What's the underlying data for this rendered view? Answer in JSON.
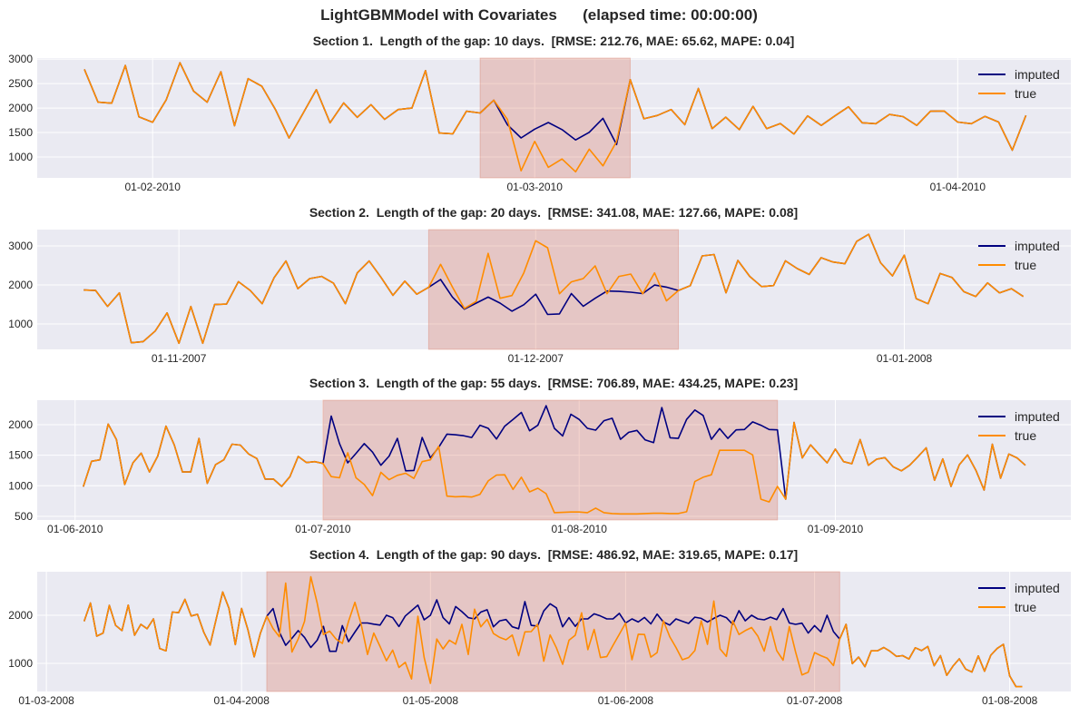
{
  "title": "LightGBMModel with Covariates      (elapsed time: 00:00:00)",
  "colors": {
    "background": "#EAEAF2",
    "grid": "#FFFFFF",
    "imputed": "#000080",
    "true": "#FF8C00",
    "gap_shade": "#D9735C"
  },
  "chart_data": [
    {
      "type": "line",
      "title": "Section 1.  Length of the gap: 10 days.  [RMSE: 212.76, MAE: 65.62, MAPE: 0.04]",
      "x_first": "2010-01-27",
      "x_last": "2010-04-06",
      "x_frequency": "daily",
      "xlim": [
        "2010-01-23T13:00",
        "2010-04-09T07:00"
      ],
      "ylim": [
        575,
        3020
      ],
      "yticks": [
        1000,
        1500,
        2000,
        2500,
        3000
      ],
      "xticks": [
        {
          "date": "2010-02-01",
          "label": "01-02-2010"
        },
        {
          "date": "2010-03-01",
          "label": "01-03-2010"
        },
        {
          "date": "2010-04-01",
          "label": "01-04-2010"
        }
      ],
      "gap_shade": [
        "2010-02-25",
        "2010-03-08"
      ],
      "grid": true,
      "legend_position": "top-right",
      "series": [
        {
          "name": "imputed",
          "values": [
            2790,
            2120,
            2100,
            2870,
            1820,
            1710,
            2170,
            2925,
            2345,
            2120,
            2740,
            1640,
            2600,
            2445,
            1970,
            1390,
            1880,
            2375,
            1700,
            2105,
            1810,
            2070,
            1770,
            1970,
            2000,
            2765,
            1490,
            1475,
            1935,
            1900,
            2160,
            1660,
            1390,
            1570,
            1705,
            1560,
            1350,
            1505,
            1790,
            1255,
            2580,
            1780,
            1850,
            1970,
            1660,
            2400,
            1580,
            1815,
            1560,
            2035,
            1580,
            1685,
            1470,
            1840,
            1645,
            1840,
            2025,
            1700,
            1680,
            1870,
            1825,
            1645,
            1935,
            1940,
            1715,
            1680,
            1830,
            1715,
            1140,
            1850
          ]
        },
        {
          "name": "true",
          "values": [
            2790,
            2120,
            2100,
            2870,
            1820,
            1710,
            2170,
            2925,
            2345,
            2120,
            2740,
            1640,
            2600,
            2445,
            1970,
            1390,
            1880,
            2375,
            1700,
            2105,
            1810,
            2070,
            1770,
            1970,
            2000,
            2765,
            1490,
            1475,
            1935,
            1900,
            2160,
            1770,
            720,
            1320,
            790,
            960,
            700,
            1160,
            820,
            1315,
            2580,
            1780,
            1850,
            1970,
            1660,
            2400,
            1580,
            1815,
            1560,
            2035,
            1580,
            1685,
            1470,
            1840,
            1645,
            1840,
            2025,
            1700,
            1680,
            1870,
            1825,
            1645,
            1935,
            1940,
            1715,
            1680,
            1830,
            1715,
            1140,
            1850
          ]
        }
      ]
    },
    {
      "type": "line",
      "title": "Section 2.  Length of the gap: 20 days.  [RMSE: 341.08, MAE: 127.66, MAPE: 0.08]",
      "x_first": "2007-10-24",
      "x_last": "2008-01-11",
      "x_frequency": "daily",
      "xlim": [
        "2007-10-20T02:00",
        "2008-01-15T00:00"
      ],
      "ylim": [
        350,
        3420
      ],
      "yticks": [
        1000,
        2000,
        3000
      ],
      "xticks": [
        {
          "date": "2007-11-01",
          "label": "01-11-2007"
        },
        {
          "date": "2007-12-01",
          "label": "01-12-2007"
        },
        {
          "date": "2008-01-01",
          "label": "01-01-2008"
        }
      ],
      "gap_shade": [
        "2007-11-22",
        "2007-12-13"
      ],
      "grid": true,
      "legend_position": "top-right",
      "series": [
        {
          "name": "imputed",
          "values": [
            1870,
            1860,
            1450,
            1800,
            520,
            550,
            820,
            1285,
            505,
            1450,
            505,
            1500,
            1510,
            2085,
            1860,
            1520,
            2185,
            2615,
            1905,
            2165,
            2220,
            2045,
            1520,
            2310,
            2615,
            2195,
            1735,
            2100,
            1765,
            1940,
            2140,
            1690,
            1380,
            1535,
            1690,
            1535,
            1330,
            1495,
            1765,
            1245,
            1260,
            1780,
            1455,
            1660,
            1845,
            1835,
            1815,
            1780,
            2000,
            1945,
            1860,
            1985,
            2745,
            2780,
            1800,
            2630,
            2220,
            1960,
            1985,
            2620,
            2420,
            2270,
            2700,
            2590,
            2545,
            3120,
            3300,
            2570,
            2235,
            2765,
            1650,
            1520,
            2295,
            2195,
            1830,
            1705,
            2055,
            1800,
            1905,
            1705
          ]
        },
        {
          "name": "true",
          "values": [
            1870,
            1860,
            1450,
            1800,
            520,
            550,
            820,
            1285,
            505,
            1450,
            505,
            1500,
            1510,
            2085,
            1860,
            1520,
            2185,
            2615,
            1905,
            2165,
            2220,
            2045,
            1520,
            2310,
            2615,
            2195,
            1735,
            2100,
            1765,
            1940,
            2530,
            1945,
            1400,
            1580,
            2810,
            1660,
            1730,
            2310,
            3135,
            2955,
            1775,
            2080,
            2165,
            2490,
            1775,
            2220,
            2280,
            1775,
            2310,
            1595,
            1860,
            1985,
            2745,
            2780,
            1800,
            2630,
            2220,
            1960,
            1985,
            2620,
            2420,
            2270,
            2700,
            2590,
            2545,
            3120,
            3300,
            2570,
            2235,
            2765,
            1650,
            1520,
            2295,
            2195,
            1830,
            1705,
            2055,
            1800,
            1905,
            1705
          ]
        }
      ]
    },
    {
      "type": "line",
      "title": "Section 3.  Length of the gap: 55 days.  [RMSE: 706.89, MAE: 434.25, MAPE: 0.23]",
      "x_first": "2010-06-02",
      "x_last": "2010-09-24",
      "x_frequency": "daily",
      "xlim": [
        "2010-05-27T10:00",
        "2010-09-29T12:00"
      ],
      "ylim": [
        440,
        2400
      ],
      "yticks": [
        500,
        1000,
        1500,
        2000
      ],
      "xticks": [
        {
          "date": "2010-06-01",
          "label": "01-06-2010"
        },
        {
          "date": "2010-07-01",
          "label": "01-07-2010"
        },
        {
          "date": "2010-08-01",
          "label": "01-08-2010"
        },
        {
          "date": "2010-09-01",
          "label": "01-09-2010"
        }
      ],
      "gap_shade": [
        "2010-07-01",
        "2010-08-25"
      ],
      "grid": true,
      "legend_position": "top-right",
      "series": [
        {
          "name": "imputed",
          "values": [
            985,
            1400,
            1425,
            2010,
            1755,
            1020,
            1375,
            1535,
            1225,
            1485,
            1975,
            1670,
            1225,
            1225,
            1775,
            1040,
            1345,
            1425,
            1680,
            1665,
            1520,
            1445,
            1110,
            1110,
            990,
            1150,
            1480,
            1380,
            1395,
            1365,
            2140,
            1690,
            1375,
            1530,
            1690,
            1550,
            1335,
            1485,
            1775,
            1245,
            1250,
            1790,
            1455,
            1630,
            1845,
            1835,
            1820,
            1790,
            1990,
            1940,
            1765,
            1975,
            2085,
            2200,
            1900,
            1990,
            2310,
            1940,
            1815,
            2170,
            2085,
            1940,
            1910,
            2065,
            2105,
            1760,
            1875,
            1905,
            1750,
            1705,
            2280,
            1785,
            1775,
            2085,
            2240,
            2150,
            1760,
            1935,
            1775,
            1915,
            1920,
            2045,
            1990,
            1920,
            1915,
            780,
            2035,
            1455,
            1670,
            1520,
            1375,
            1600,
            1395,
            1360,
            1755,
            1335,
            1435,
            1460,
            1310,
            1245,
            1335,
            1475,
            1620,
            1090,
            1440,
            990,
            1345,
            1505,
            1255,
            930,
            1680,
            1125,
            1520,
            1455,
            1335
          ]
        },
        {
          "name": "true",
          "values": [
            985,
            1400,
            1425,
            2010,
            1755,
            1020,
            1375,
            1535,
            1225,
            1485,
            1975,
            1670,
            1225,
            1225,
            1775,
            1040,
            1345,
            1425,
            1680,
            1665,
            1520,
            1445,
            1110,
            1110,
            990,
            1150,
            1480,
            1380,
            1395,
            1365,
            1150,
            1130,
            1540,
            1130,
            1020,
            840,
            1220,
            1100,
            1170,
            1205,
            1120,
            1395,
            1425,
            1645,
            830,
            820,
            825,
            815,
            860,
            1080,
            1175,
            1180,
            940,
            1140,
            900,
            960,
            870,
            560,
            565,
            570,
            570,
            560,
            635,
            560,
            545,
            540,
            540,
            540,
            545,
            550,
            550,
            545,
            545,
            575,
            1070,
            1140,
            1180,
            1580,
            1580,
            1580,
            1580,
            1505,
            780,
            735,
            990,
            780,
            2035,
            1455,
            1670,
            1520,
            1375,
            1600,
            1395,
            1360,
            1755,
            1335,
            1435,
            1460,
            1310,
            1245,
            1335,
            1475,
            1620,
            1090,
            1440,
            990,
            1345,
            1505,
            1255,
            930,
            1680,
            1125,
            1520,
            1455,
            1335
          ]
        }
      ]
    },
    {
      "type": "line",
      "title": "Section 4.  Length of the gap: 90 days.  [RMSE: 486.92, MAE: 319.65, MAPE: 0.17]",
      "x_first": "2008-03-07",
      "x_last": "2008-08-03",
      "x_frequency": "daily",
      "xlim": [
        "2008-02-28T13:00",
        "2008-08-10T17:00"
      ],
      "ylim": [
        415,
        2905
      ],
      "yticks": [
        1000,
        2000
      ],
      "xticks": [
        {
          "date": "2008-03-01",
          "label": "01-03-2008"
        },
        {
          "date": "2008-04-01",
          "label": "01-04-2008"
        },
        {
          "date": "2008-05-01",
          "label": "01-05-2008"
        },
        {
          "date": "2008-06-01",
          "label": "01-06-2008"
        },
        {
          "date": "2008-07-01",
          "label": "01-07-2008"
        },
        {
          "date": "2008-08-01",
          "label": "01-08-2008"
        }
      ],
      "gap_shade": [
        "2008-04-05",
        "2008-07-05"
      ],
      "grid": true,
      "legend_position": "top-right",
      "series": [
        {
          "name": "imputed",
          "values": [
            1875,
            2255,
            1565,
            1630,
            2205,
            1790,
            1680,
            2210,
            1585,
            1810,
            1720,
            1925,
            1310,
            1260,
            2065,
            2055,
            2330,
            1985,
            2020,
            1645,
            1380,
            1935,
            2485,
            2145,
            1390,
            2140,
            1705,
            1135,
            1630,
            1980,
            2140,
            1650,
            1375,
            1520,
            1680,
            1540,
            1330,
            1480,
            1770,
            1250,
            1250,
            1785,
            1450,
            1650,
            1840,
            1840,
            1815,
            1795,
            2000,
            1950,
            1765,
            1985,
            2095,
            2210,
            1905,
            2000,
            2320,
            1950,
            1820,
            2180,
            2075,
            1950,
            1925,
            2065,
            2115,
            1760,
            1885,
            1910,
            1760,
            1720,
            2285,
            1790,
            1775,
            2090,
            2240,
            2155,
            1760,
            1950,
            1770,
            1925,
            1925,
            2030,
            1985,
            1925,
            1925,
            2040,
            1840,
            1925,
            1860,
            1955,
            1820,
            2025,
            1860,
            1795,
            1925,
            1875,
            1830,
            1960,
            1935,
            1860,
            1935,
            2000,
            1950,
            1810,
            2095,
            1885,
            2000,
            1925,
            1905,
            1960,
            1910,
            2140,
            1840,
            1810,
            1835,
            1630,
            1785,
            1655,
            2000,
            1660,
            1505,
            1810,
            995,
            1130,
            930,
            1260,
            1260,
            1330,
            1250,
            1145,
            1160,
            1090,
            1325,
            1265,
            1350,
            950,
            1160,
            750,
            945,
            1095,
            880,
            820,
            1155,
            835,
            1170,
            1310,
            1395,
            740,
            515,
            515
          ]
        },
        {
          "name": "true",
          "values": [
            1875,
            2255,
            1565,
            1630,
            2205,
            1790,
            1680,
            2210,
            1585,
            1810,
            1720,
            1925,
            1310,
            1260,
            2065,
            2055,
            2330,
            1985,
            2020,
            1645,
            1380,
            1935,
            2485,
            2145,
            1390,
            2140,
            1705,
            1135,
            1630,
            1980,
            1725,
            1555,
            2670,
            1235,
            1505,
            1875,
            2800,
            2255,
            1600,
            1670,
            1505,
            1415,
            1875,
            2270,
            1810,
            1185,
            1630,
            1350,
            1055,
            1275,
            915,
            1020,
            675,
            1980,
            1120,
            585,
            1505,
            1300,
            1480,
            1400,
            1810,
            1185,
            2125,
            1760,
            1915,
            1620,
            1540,
            1490,
            1590,
            1160,
            1655,
            1660,
            1810,
            1045,
            1590,
            1325,
            980,
            1480,
            1585,
            2050,
            1285,
            1705,
            1120,
            1140,
            1375,
            1605,
            1840,
            1075,
            1605,
            1600,
            1130,
            1225,
            1885,
            1555,
            1330,
            1075,
            1120,
            1265,
            1885,
            1395,
            2295,
            1300,
            1145,
            1885,
            1600,
            1680,
            1745,
            1565,
            1255,
            1765,
            1265,
            1065,
            1765,
            1235,
            760,
            815,
            1225,
            1160,
            1110,
            955,
            1505,
            1810,
            995,
            1130,
            930,
            1260,
            1260,
            1330,
            1250,
            1145,
            1160,
            1090,
            1325,
            1265,
            1350,
            950,
            1160,
            750,
            945,
            1095,
            880,
            820,
            1155,
            835,
            1170,
            1310,
            1395,
            740,
            515,
            515
          ]
        }
      ]
    }
  ]
}
